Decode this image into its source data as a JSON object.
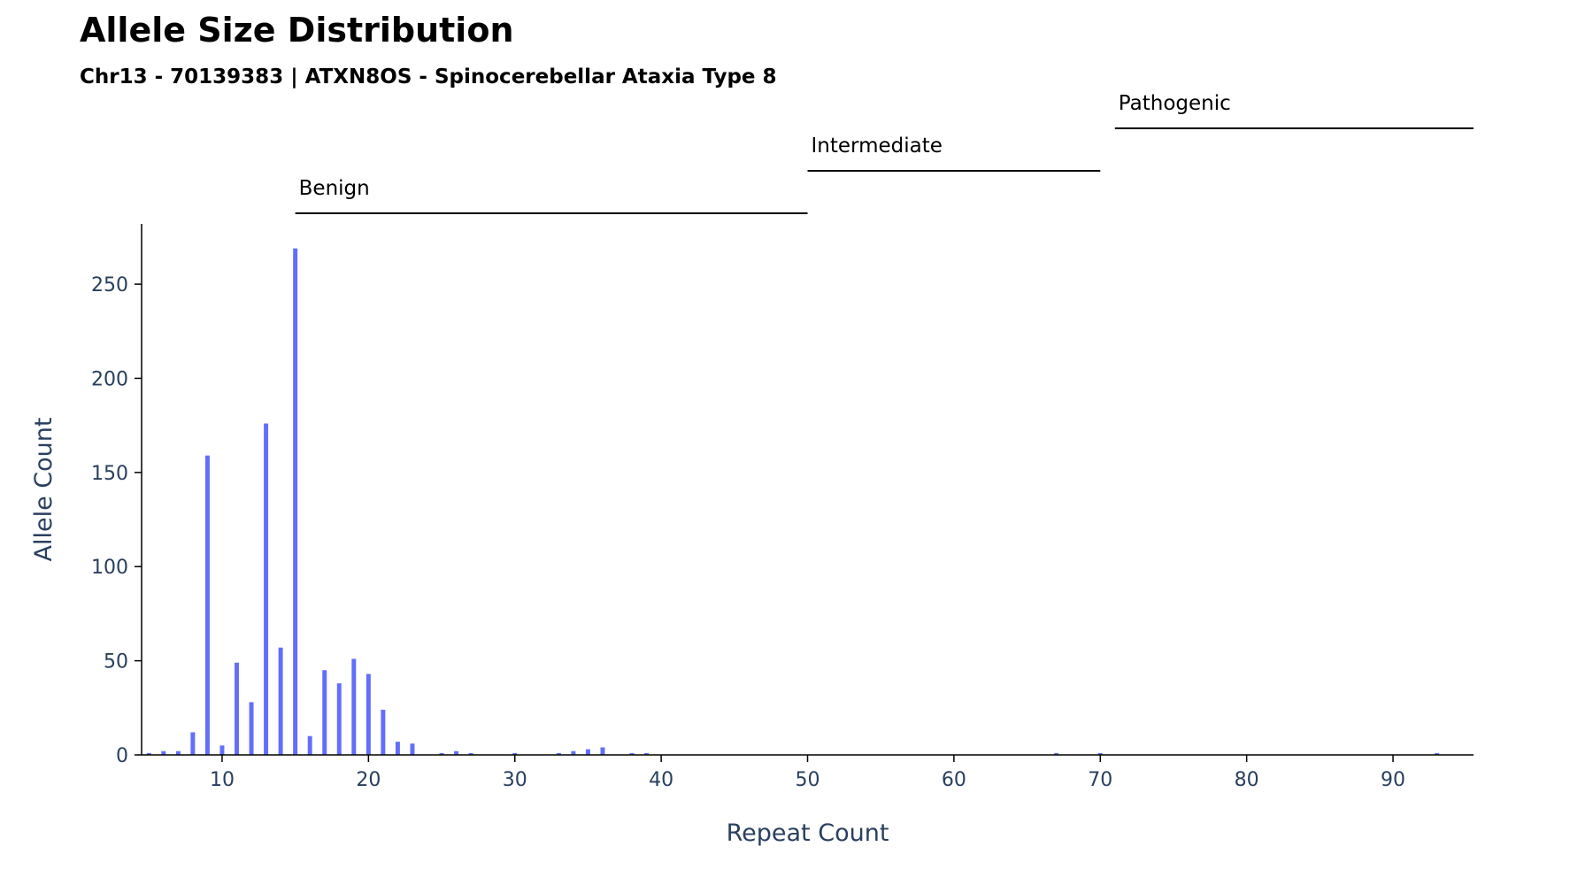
{
  "chart_data": {
    "type": "bar",
    "title": "Allele Size Distribution",
    "subtitle": "Chr13 - 70139383 | ATXN8OS - Spinocerebellar Ataxia Type 8",
    "xlabel": "Repeat Count",
    "ylabel": "Allele Count",
    "xlim": [
      4.5,
      95.5
    ],
    "ylim": [
      0,
      282
    ],
    "xticks": [
      10,
      20,
      30,
      40,
      50,
      60,
      70,
      80,
      90
    ],
    "yticks": [
      0,
      50,
      100,
      150,
      200,
      250
    ],
    "grid": false,
    "bar_color": "#636efa",
    "x": [
      5,
      6,
      7,
      8,
      9,
      10,
      11,
      12,
      13,
      14,
      15,
      16,
      17,
      18,
      19,
      20,
      21,
      22,
      23,
      25,
      26,
      27,
      30,
      33,
      34,
      35,
      36,
      38,
      39,
      67,
      70,
      93
    ],
    "values": [
      1,
      2,
      2,
      12,
      159,
      5,
      49,
      28,
      176,
      57,
      269,
      10,
      45,
      38,
      51,
      43,
      24,
      7,
      6,
      1,
      2,
      1,
      1,
      1,
      2,
      3,
      4,
      1,
      1,
      1,
      1,
      1
    ],
    "ranges": [
      {
        "label": "Benign",
        "start": 15,
        "end": 50,
        "level": 0
      },
      {
        "label": "Intermediate",
        "start": 50,
        "end": 70,
        "level": 1
      },
      {
        "label": "Pathogenic",
        "start": 71,
        "end": 95.5,
        "level": 2
      }
    ]
  }
}
